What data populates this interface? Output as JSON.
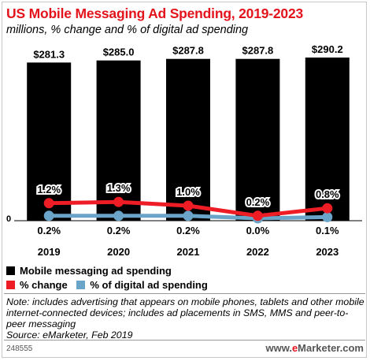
{
  "header": {
    "title": "US Mobile Messaging Ad Spending, 2019-2023",
    "subtitle": "millions, % change and % of digital ad spending"
  },
  "chart_data": {
    "type": "bar",
    "categories": [
      "2019",
      "2020",
      "2021",
      "2022",
      "2023"
    ],
    "series": [
      {
        "name": "Mobile messaging ad spending",
        "type": "bar",
        "values": [
          281.3,
          285.0,
          287.8,
          287.8,
          290.2
        ],
        "labels": [
          "$281.3",
          "$285.0",
          "$287.8",
          "$287.8",
          "$290.2"
        ],
        "color": "#000000"
      },
      {
        "name": "% change",
        "type": "line",
        "values": [
          1.2,
          1.3,
          1.0,
          0.2,
          0.8
        ],
        "labels": [
          "1.2%",
          "1.3%",
          "1.0%",
          "0.2%",
          "0.8%"
        ],
        "color": "#ee1c25"
      },
      {
        "name": "% of digital ad spending",
        "type": "line",
        "values": [
          0.2,
          0.2,
          0.2,
          0.0,
          0.1
        ],
        "labels": [
          "0.2%",
          "0.2%",
          "0.2%",
          "0.0%",
          "0.1%"
        ],
        "color": "#6aa4c8"
      }
    ],
    "y_zero_label": "0",
    "grid": false,
    "legend_position": "bottom-left"
  },
  "legend": [
    {
      "label": "Mobile messaging ad spending",
      "color": "#000000"
    },
    {
      "label": "% change",
      "color": "#ee1c25"
    },
    {
      "label": "% of digital ad spending",
      "color": "#6aa4c8"
    }
  ],
  "note": "Note: includes advertising that appears on mobile phones, tablets and other mobile internet-connected devices; includes ad placements in SMS, MMS and peer-to-peer messaging",
  "source": "Source: eMarketer, Feb 2019",
  "footer": {
    "id": "248555",
    "brand_prefix": "www.",
    "brand_accent": "e",
    "brand_rest": "Marketer.com"
  }
}
